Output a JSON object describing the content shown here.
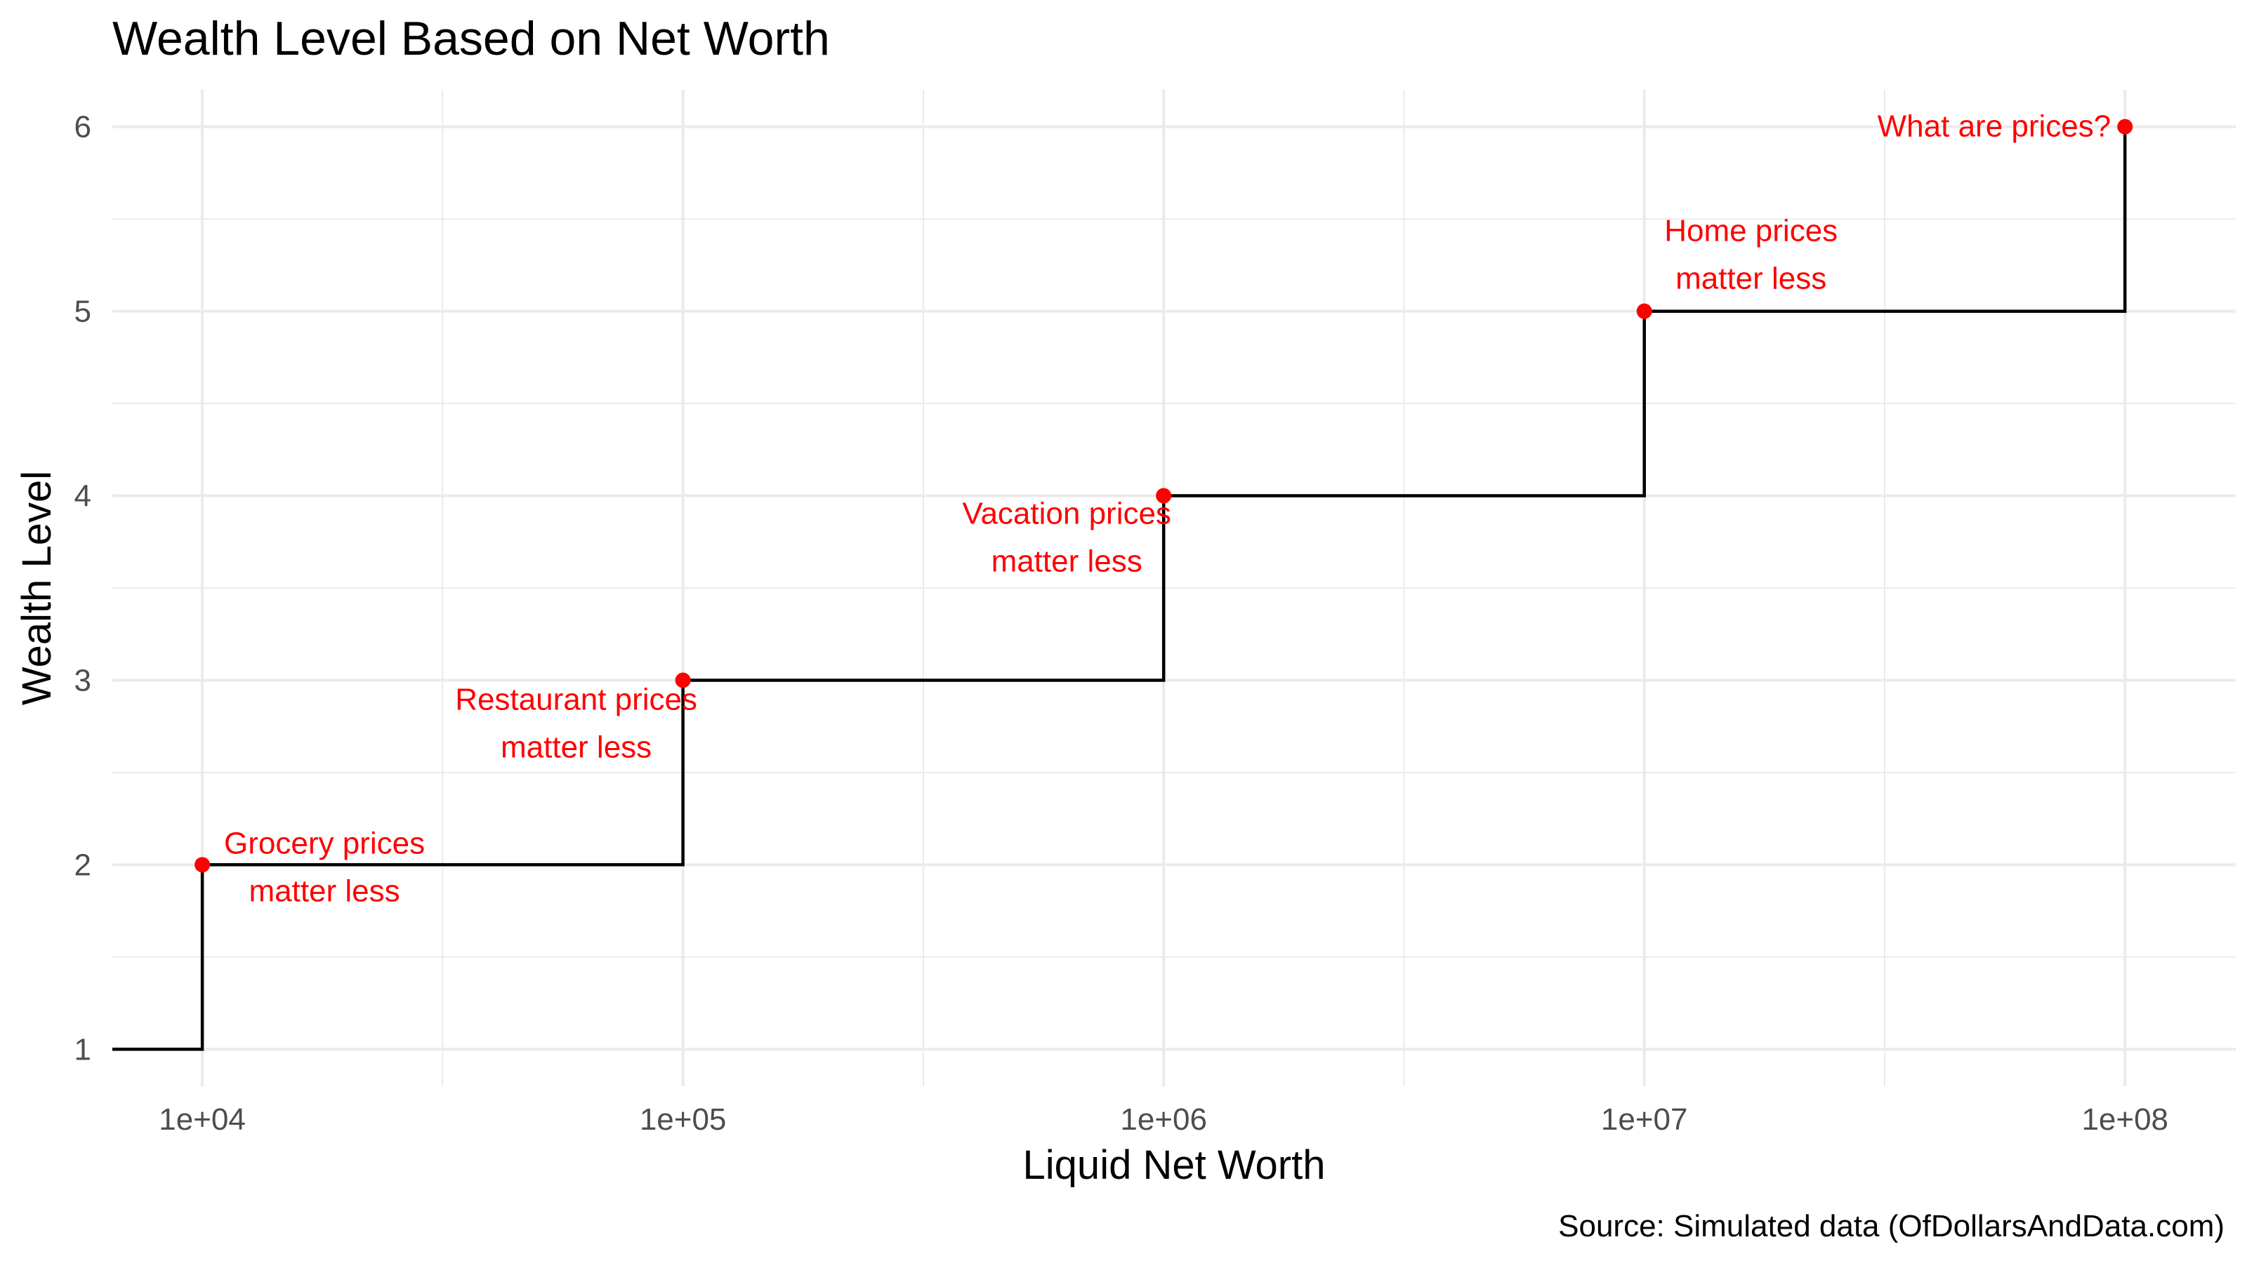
{
  "chart_data": {
    "type": "line",
    "title": "Wealth Level Based on Net Worth",
    "xlabel": "Liquid Net Worth",
    "ylabel": "Wealth Level",
    "caption": "Source: Simulated data (OfDollarsAndData.com)",
    "x_scale": "log10",
    "xlim": [
      6500,
      170000000
    ],
    "ylim": [
      0.8,
      6.2
    ],
    "x_ticks": [
      10000,
      100000,
      1000000,
      10000000,
      100000000
    ],
    "x_tick_labels": [
      "1e+04",
      "1e+05",
      "1e+06",
      "1e+07",
      "1e+08"
    ],
    "y_ticks": [
      1,
      2,
      3,
      4,
      5,
      6
    ],
    "y_tick_labels": [
      "1",
      "2",
      "3",
      "4",
      "5",
      "6"
    ],
    "grid": true,
    "step_series": {
      "x": [
        6500,
        10000,
        10000,
        100000,
        100000,
        1000000,
        1000000,
        10000000,
        10000000,
        100000000,
        100000000
      ],
      "y": [
        1,
        1,
        2,
        2,
        3,
        3,
        4,
        4,
        5,
        5,
        6
      ]
    },
    "point_color": "#ff0000",
    "line_color": "#000000",
    "points": [
      {
        "x": 10000,
        "y": 2,
        "label": [
          "Grocery prices",
          "matter less"
        ]
      },
      {
        "x": 100000,
        "y": 3,
        "label": [
          "Restaurant prices",
          "matter less"
        ]
      },
      {
        "x": 1000000,
        "y": 4,
        "label": [
          "Vacation prices",
          "matter less"
        ]
      },
      {
        "x": 10000000,
        "y": 5,
        "label": [
          "Home prices",
          "matter less"
        ]
      },
      {
        "x": 100000000,
        "y": 6,
        "label": [
          "What are prices?"
        ]
      }
    ]
  }
}
